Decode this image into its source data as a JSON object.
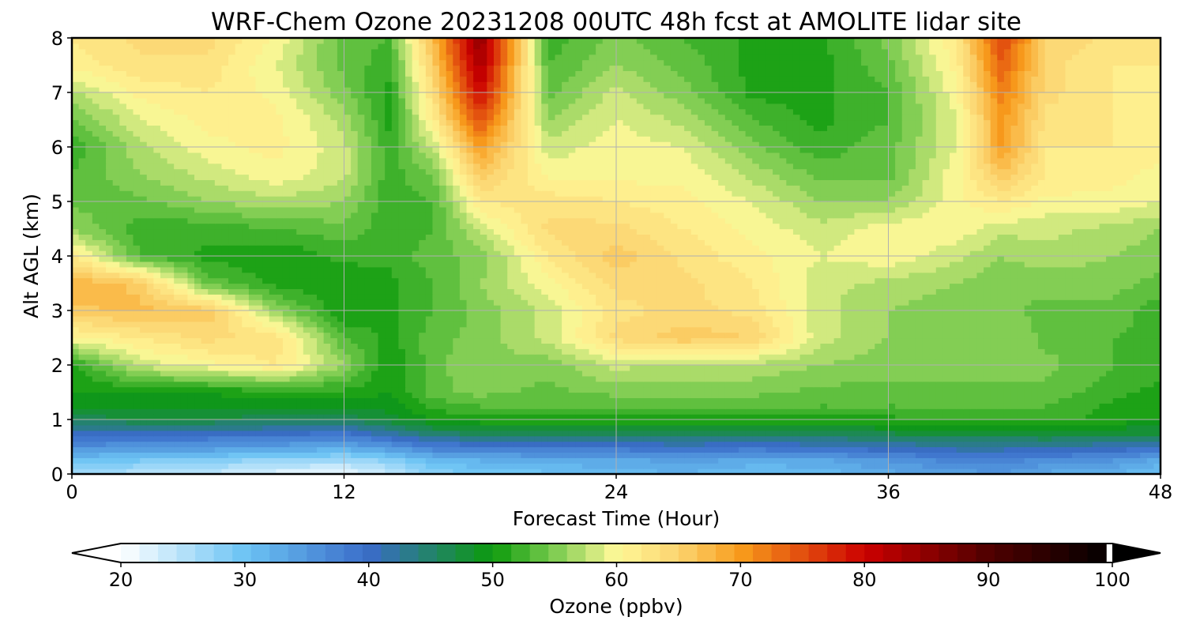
{
  "chart_data": {
    "type": "heatmap",
    "title": "WRF-Chem Ozone  20231208 00UTC 48h fcst at AMOLITE lidar site",
    "xlabel": "Forecast Time (Hour)",
    "ylabel": "Alt AGL (km)",
    "xlim": [
      0,
      48
    ],
    "ylim": [
      0,
      8
    ],
    "x_ticks": [
      0,
      12,
      24,
      36,
      48
    ],
    "y_ticks": [
      0,
      1,
      2,
      3,
      4,
      5,
      6,
      7,
      8
    ],
    "grid": true,
    "colorbar": {
      "label": "Ozone  (ppbv)",
      "range": [
        20,
        100
      ],
      "ticks": [
        20,
        30,
        40,
        50,
        60,
        70,
        80,
        90,
        100
      ],
      "extend": "both",
      "colors": [
        {
          "value": 20,
          "color": "#ffffff"
        },
        {
          "value": 30,
          "color": "#6cc4f4"
        },
        {
          "value": 40,
          "color": "#3a6cc8"
        },
        {
          "value": 50,
          "color": "#0c9a0c"
        },
        {
          "value": 55,
          "color": "#7ccc50"
        },
        {
          "value": 60,
          "color": "#fff898"
        },
        {
          "value": 65,
          "color": "#fcd470"
        },
        {
          "value": 70,
          "color": "#f89c1c"
        },
        {
          "value": 80,
          "color": "#cc0000"
        },
        {
          "value": 90,
          "color": "#500000"
        },
        {
          "value": 100,
          "color": "#000000"
        }
      ]
    },
    "x_hours": [
      0,
      3,
      6,
      9,
      12,
      14,
      16,
      18,
      21,
      24,
      27,
      30,
      33,
      36,
      39,
      41,
      43,
      46,
      48
    ],
    "y_km": [
      0,
      0.25,
      0.5,
      0.75,
      1,
      1.25,
      1.5,
      2,
      2.5,
      3,
      3.5,
      4,
      4.5,
      5,
      5.5,
      6,
      6.5,
      7,
      7.5,
      8
    ],
    "ozone_ppbv": [
      [
        26,
        25,
        24,
        22,
        21,
        24,
        28,
        29,
        30,
        31,
        32,
        30,
        31,
        33,
        34,
        35,
        33,
        32,
        30
      ],
      [
        30,
        29,
        28,
        27,
        26,
        28,
        31,
        32,
        33,
        33,
        34,
        33,
        33,
        35,
        37,
        37,
        36,
        35,
        33
      ],
      [
        36,
        35,
        35,
        34,
        33,
        35,
        38,
        38,
        39,
        39,
        40,
        39,
        40,
        41,
        42,
        42,
        42,
        41,
        40
      ],
      [
        41,
        40,
        40,
        40,
        39,
        42,
        45,
        46,
        46,
        46,
        46,
        46,
        46,
        47,
        47,
        47,
        48,
        47,
        47
      ],
      [
        46,
        47,
        47,
        46,
        46,
        48,
        50,
        51,
        51,
        51,
        51,
        51,
        51,
        51,
        52,
        52,
        52,
        51,
        50
      ],
      [
        49,
        49,
        49,
        49,
        49,
        49,
        52,
        53,
        53,
        53,
        53,
        53,
        53,
        53,
        53,
        53,
        53,
        51,
        50
      ],
      [
        50,
        50,
        50,
        51,
        51,
        50,
        54,
        55,
        54,
        55,
        55,
        55,
        54,
        54,
        54,
        54,
        54,
        52,
        51
      ],
      [
        51,
        58,
        60,
        62,
        56,
        50,
        54,
        56,
        55,
        58,
        57,
        57,
        56,
        55,
        55,
        55,
        55,
        53,
        52
      ],
      [
        60,
        62,
        64,
        63,
        53,
        51,
        54,
        55,
        58,
        64,
        66,
        65,
        58,
        56,
        56,
        56,
        54,
        53,
        52
      ],
      [
        66,
        67,
        66,
        56,
        50,
        51,
        53,
        55,
        58,
        63,
        64,
        63,
        58,
        56,
        55,
        55,
        54,
        54,
        52
      ],
      [
        68,
        66,
        54,
        51,
        50,
        51,
        53,
        56,
        60,
        64,
        64,
        62,
        58,
        57,
        56,
        55,
        55,
        55,
        54
      ],
      [
        62,
        53,
        51,
        50,
        52,
        52,
        54,
        55,
        62,
        66,
        63,
        61,
        59,
        60,
        58,
        56,
        57,
        56,
        55
      ],
      [
        56,
        52,
        52,
        53,
        54,
        52,
        53,
        58,
        64,
        64,
        62,
        60,
        58,
        60,
        60,
        58,
        58,
        57,
        56
      ],
      [
        54,
        54,
        56,
        57,
        56,
        52,
        53,
        62,
        63,
        62,
        61,
        59,
        56,
        56,
        60,
        62,
        60,
        60,
        59
      ],
      [
        53,
        56,
        58,
        60,
        58,
        52,
        55,
        66,
        60,
        60,
        60,
        57,
        54,
        54,
        60,
        66,
        62,
        61,
        60
      ],
      [
        52,
        57,
        60,
        61,
        58,
        52,
        58,
        70,
        58,
        60,
        59,
        55,
        52,
        54,
        59,
        70,
        62,
        62,
        61
      ],
      [
        54,
        59,
        61,
        61,
        57,
        51,
        62,
        75,
        56,
        59,
        57,
        53,
        51,
        53,
        59,
        70,
        63,
        62,
        61
      ],
      [
        57,
        61,
        62,
        60,
        55,
        51,
        64,
        80,
        54,
        58,
        55,
        51,
        51,
        53,
        60,
        72,
        64,
        62,
        61
      ],
      [
        61,
        63,
        63,
        59,
        54,
        52,
        66,
        83,
        53,
        56,
        54,
        51,
        51,
        54,
        61,
        74,
        64,
        62,
        62
      ],
      [
        62,
        64,
        64,
        60,
        54,
        53,
        68,
        85,
        52,
        55,
        53,
        51,
        51,
        55,
        62,
        76,
        65,
        63,
        62
      ]
    ]
  }
}
